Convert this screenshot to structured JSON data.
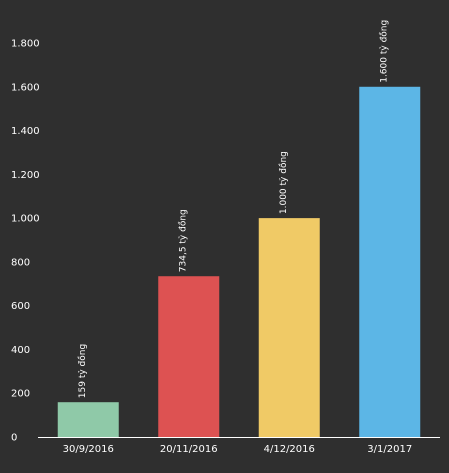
{
  "chart_data": {
    "type": "bar",
    "categories": [
      "30/9/2016",
      "20/11/2016",
      "4/12/2016",
      "3/1/2017"
    ],
    "values": [
      159,
      734.5,
      1000,
      1600
    ],
    "data_labels": [
      "159 tỷ đồng",
      "734,5 tỷ đồng",
      "1.000 tỷ đồng",
      "1.600 tỷ đồng"
    ],
    "bar_colors": [
      "#8fc9a8",
      "#dd5252",
      "#f0ca66",
      "#5cb6e6"
    ],
    "y_ticks": [
      0,
      200,
      400,
      600,
      800,
      1000,
      1200,
      1400,
      1600,
      1800
    ],
    "y_tick_labels": [
      "0",
      "200",
      "400",
      "600",
      "800",
      "1.000",
      "1.200",
      "1.400",
      "1.600",
      "1.800"
    ],
    "ylim": [
      0,
      1850
    ],
    "grid": false,
    "title": "",
    "xlabel": "",
    "ylabel": "",
    "background": "#2f2f2f",
    "text_color": "#ffffff",
    "axis_color": "#ffffff"
  }
}
